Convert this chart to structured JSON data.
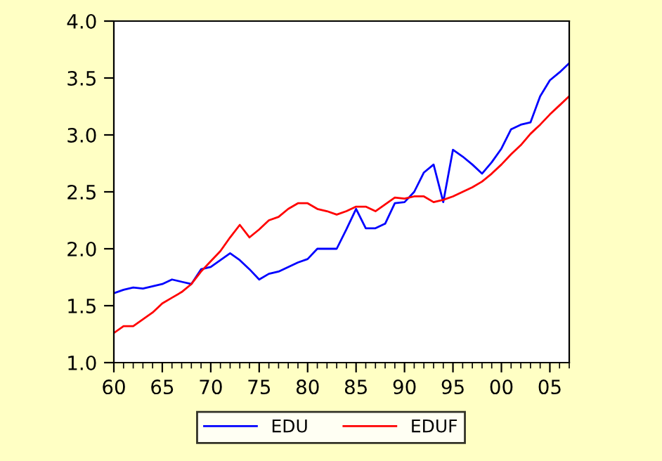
{
  "chart_data": {
    "type": "line",
    "x": [
      1960,
      1961,
      1962,
      1963,
      1964,
      1965,
      1966,
      1967,
      1968,
      1969,
      1970,
      1971,
      1972,
      1973,
      1974,
      1975,
      1976,
      1977,
      1978,
      1979,
      1980,
      1981,
      1982,
      1983,
      1984,
      1985,
      1986,
      1987,
      1988,
      1989,
      1990,
      1991,
      1992,
      1993,
      1994,
      1995,
      1996,
      1997,
      1998,
      1999,
      2000,
      2001,
      2002,
      2003,
      2004,
      2005,
      2006,
      2007
    ],
    "series": [
      {
        "name": "EDU",
        "color": "#0000ff",
        "values": [
          1.61,
          1.64,
          1.66,
          1.65,
          1.67,
          1.69,
          1.73,
          1.71,
          1.69,
          1.82,
          1.84,
          1.9,
          1.96,
          1.9,
          1.82,
          1.73,
          1.78,
          1.8,
          1.84,
          1.88,
          1.91,
          2.0,
          2.0,
          2.0,
          2.17,
          2.35,
          2.18,
          2.18,
          2.22,
          2.4,
          2.41,
          2.5,
          2.67,
          2.74,
          2.41,
          2.87,
          2.81,
          2.74,
          2.66,
          2.76,
          2.88,
          3.05,
          3.09,
          3.11,
          3.34,
          3.48,
          3.55,
          3.63
        ]
      },
      {
        "name": "EDUF",
        "color": "#ff0000",
        "values": [
          1.26,
          1.32,
          1.32,
          1.38,
          1.44,
          1.52,
          1.57,
          1.62,
          1.69,
          1.8,
          1.89,
          1.98,
          2.1,
          2.21,
          2.1,
          2.17,
          2.25,
          2.28,
          2.35,
          2.4,
          2.4,
          2.35,
          2.33,
          2.3,
          2.33,
          2.37,
          2.37,
          2.33,
          2.39,
          2.45,
          2.44,
          2.46,
          2.46,
          2.41,
          2.43,
          2.46,
          2.5,
          2.54,
          2.59,
          2.66,
          2.74,
          2.83,
          2.91,
          3.01,
          3.09,
          3.18,
          3.26,
          3.34
        ]
      }
    ],
    "xlim": [
      1960,
      2007
    ],
    "xticks": [
      {
        "value": 1960,
        "label": "60"
      },
      {
        "value": 1965,
        "label": "65"
      },
      {
        "value": 1970,
        "label": "70"
      },
      {
        "value": 1975,
        "label": "75"
      },
      {
        "value": 1980,
        "label": "80"
      },
      {
        "value": 1985,
        "label": "85"
      },
      {
        "value": 1990,
        "label": "90"
      },
      {
        "value": 1995,
        "label": "95"
      },
      {
        "value": 2000,
        "label": "00"
      },
      {
        "value": 2005,
        "label": "05"
      }
    ],
    "ylim": [
      1.0,
      4.0
    ],
    "yticks": [
      {
        "value": 1.0,
        "label": "1.0"
      },
      {
        "value": 1.5,
        "label": "1.5"
      },
      {
        "value": 2.0,
        "label": "2.0"
      },
      {
        "value": 2.5,
        "label": "2.5"
      },
      {
        "value": 3.0,
        "label": "3.0"
      },
      {
        "value": 3.5,
        "label": "3.5"
      },
      {
        "value": 4.0,
        "label": "4.0"
      }
    ],
    "grid": false,
    "legend": "bottom",
    "marker": "none",
    "line_style": "solid"
  }
}
